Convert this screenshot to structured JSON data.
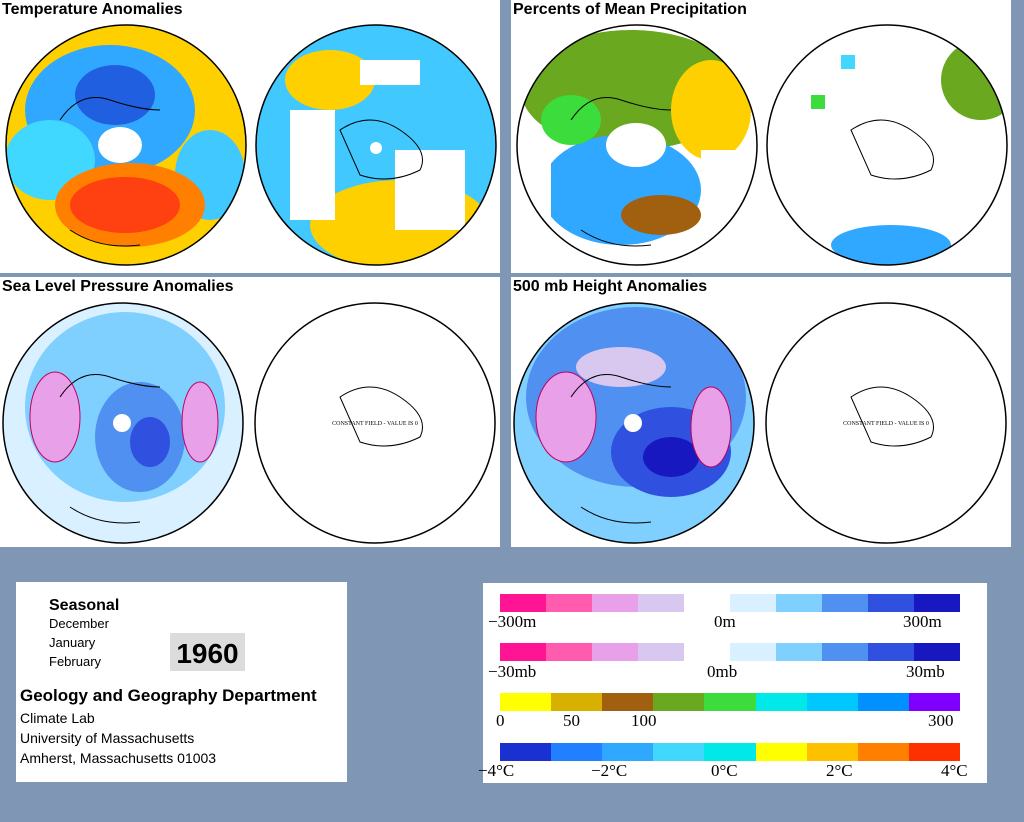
{
  "panels": {
    "temperature": {
      "title": "Temperature Anomalies"
    },
    "precipitation": {
      "title": "Percents of Mean Precipitation"
    },
    "sea_level_pressure": {
      "title": "Sea Level Pressure Anomalies",
      "note": "CONSTANT FIELD - VALUE IS 0"
    },
    "height_500mb": {
      "title": "500 mb Height Anomalies",
      "note": "CONSTANT FIELD - VALUE IS 0"
    }
  },
  "info": {
    "season": "Seasonal",
    "months": [
      "December",
      "January",
      "February"
    ],
    "year": "1960",
    "department": "Geology and Geography Department",
    "address": [
      "Climate Lab",
      "University of Massachusetts",
      "Amherst, Massachusetts 01003"
    ]
  },
  "legend": {
    "height_scale": {
      "labels": [
        "−300m",
        "0m",
        "300m"
      ],
      "colors": [
        "#ff1493",
        "#ff5cb0",
        "#e8a0e8",
        "#d8c8f0",
        "#ffffff",
        "#d8f0ff",
        "#80d0ff",
        "#5090f0",
        "#3050e0",
        "#1818c0"
      ]
    },
    "pressure_scale": {
      "labels": [
        "−30mb",
        "0mb",
        "30mb"
      ],
      "colors": [
        "#ff1493",
        "#ff5cb0",
        "#e8a0e8",
        "#d8c8f0",
        "#ffffff",
        "#d8f0ff",
        "#80d0ff",
        "#5090f0",
        "#3050e0",
        "#1818c0"
      ]
    },
    "precip_scale": {
      "labels": [
        "0",
        "50",
        "100",
        "300"
      ],
      "colors": [
        "#ffff00",
        "#d8b000",
        "#a06010",
        "#6aa820",
        "#3bdc3b",
        "#00e8e8",
        "#00c8ff",
        "#0090ff",
        "#8000ff"
      ]
    },
    "temp_scale": {
      "labels": [
        "−4°C",
        "−2°C",
        "0°C",
        "2°C",
        "4°C"
      ],
      "colors": [
        "#1a30d0",
        "#2080ff",
        "#30a8ff",
        "#40d8ff",
        "#00e8e8",
        "#ffff00",
        "#ffc000",
        "#ff8000",
        "#ff3000"
      ]
    }
  }
}
